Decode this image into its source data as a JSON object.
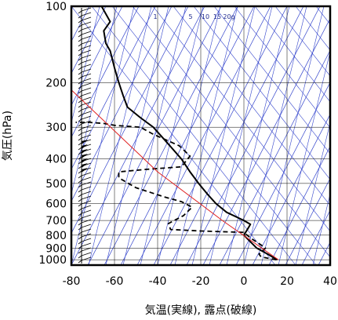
{
  "chart_data": {
    "type": "line",
    "ylabel": "気圧(hPa)",
    "xlabel": "気温(実線), 露点(破線)",
    "x_ticks": [
      -80,
      -60,
      -40,
      -20,
      0,
      20,
      40
    ],
    "y_ticks": [
      100,
      200,
      300,
      400,
      500,
      600,
      700,
      800,
      900,
      1000
    ],
    "xlim": [
      -80,
      40
    ],
    "ylim": [
      1050,
      100
    ],
    "y_scale": "log",
    "grid": true,
    "colors": {
      "temperature": "#000000",
      "dewpoint": "#000000",
      "reference_profile": "#e02020",
      "skew_lines": "#3344cc",
      "grid": "#000000"
    },
    "mixing_ratio_labels": [
      "1",
      "5",
      "10",
      "15",
      "20g"
    ],
    "series": [
      {
        "style": "solid",
        "points": [
          [
            15.5,
            1000
          ],
          [
            11,
            950
          ],
          [
            6,
            900
          ],
          [
            3,
            850
          ],
          [
            0,
            800
          ],
          [
            2,
            750
          ],
          [
            3,
            725
          ],
          [
            0,
            700
          ],
          [
            -8,
            650
          ],
          [
            -13,
            600
          ],
          [
            -17,
            550
          ],
          [
            -21,
            500
          ],
          [
            -25,
            450
          ],
          [
            -29,
            400
          ],
          [
            -35,
            350
          ],
          [
            -42,
            300
          ],
          [
            -48,
            275
          ],
          [
            -54,
            250
          ],
          [
            -56,
            225
          ],
          [
            -58,
            200
          ],
          [
            -60,
            175
          ],
          [
            -62,
            150
          ],
          [
            -64,
            140
          ],
          [
            -65,
            125
          ],
          [
            -62,
            115
          ],
          [
            -66,
            100
          ]
        ]
      },
      {
        "style": "dashed",
        "points": [
          [
            15,
            1000
          ],
          [
            8,
            975
          ],
          [
            7,
            950
          ],
          [
            10,
            900
          ],
          [
            8,
            875
          ],
          [
            3,
            820
          ],
          [
            0,
            780
          ],
          [
            -20,
            770
          ],
          [
            -34,
            760
          ],
          [
            -35,
            720
          ],
          [
            -28,
            670
          ],
          [
            -24,
            620
          ],
          [
            -29,
            590
          ],
          [
            -37,
            565
          ],
          [
            -50,
            520
          ],
          [
            -58,
            475
          ],
          [
            -58,
            450
          ],
          [
            -45,
            440
          ],
          [
            -29,
            430
          ],
          [
            -25,
            390
          ],
          [
            -30,
            355
          ],
          [
            -42,
            320
          ],
          [
            -48,
            300
          ],
          [
            -60,
            295
          ],
          [
            -65,
            290
          ],
          [
            -72,
            287
          ],
          [
            -78,
            287
          ]
        ]
      },
      {
        "style": "solid",
        "points": [
          [
            16,
            1000
          ],
          [
            -10,
            700
          ],
          [
            -40,
            450
          ],
          [
            -85,
            195
          ]
        ]
      }
    ]
  }
}
